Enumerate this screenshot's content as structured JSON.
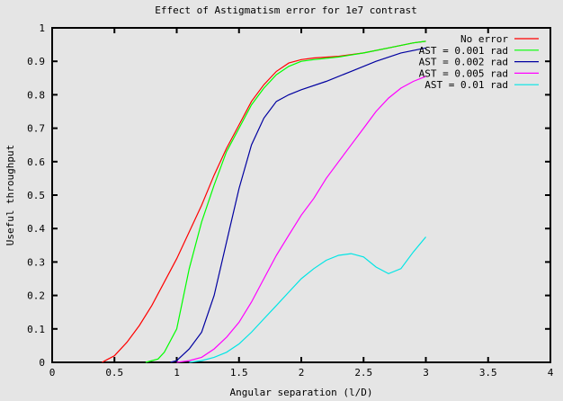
{
  "chart_data": {
    "type": "line",
    "title": "Effect of Astigmatism error for 1e7 contrast",
    "xlabel": "Angular separation (l/D)",
    "ylabel": "Useful throughput",
    "xlim": [
      0,
      4
    ],
    "ylim": [
      0,
      1
    ],
    "xticks": [
      "0",
      "0.5",
      "1",
      "1.5",
      "2",
      "2.5",
      "3",
      "3.5",
      "4"
    ],
    "xtick_values": [
      0,
      0.5,
      1,
      1.5,
      2,
      2.5,
      3,
      3.5,
      4
    ],
    "yticks": [
      "0",
      "0.1",
      "0.2",
      "0.3",
      "0.4",
      "0.5",
      "0.6",
      "0.7",
      "0.8",
      "0.9",
      "1"
    ],
    "ytick_values": [
      0,
      0.1,
      0.2,
      0.3,
      0.4,
      0.5,
      0.6,
      0.7,
      0.8,
      0.9,
      1
    ],
    "grid": false,
    "legend_position": "top-right",
    "series": [
      {
        "name": "No error",
        "color": "#ff0000",
        "x": [
          0.4,
          0.45,
          0.5,
          0.6,
          0.7,
          0.8,
          0.9,
          1.0,
          1.1,
          1.2,
          1.3,
          1.4,
          1.5,
          1.6,
          1.7,
          1.8,
          1.9,
          2.0,
          2.1,
          2.3,
          2.5,
          2.7,
          2.9,
          3.0
        ],
        "y": [
          0,
          0.01,
          0.02,
          0.06,
          0.11,
          0.17,
          0.24,
          0.31,
          0.39,
          0.47,
          0.56,
          0.64,
          0.71,
          0.78,
          0.83,
          0.87,
          0.895,
          0.905,
          0.91,
          0.915,
          0.925,
          0.94,
          0.955,
          0.96
        ]
      },
      {
        "name": "AST = 0.001 rad",
        "color": "#00ff00",
        "x": [
          0.75,
          0.85,
          0.9,
          1.0,
          1.1,
          1.2,
          1.3,
          1.4,
          1.5,
          1.6,
          1.7,
          1.8,
          1.9,
          2.0,
          2.1,
          2.3,
          2.5,
          2.7,
          2.9,
          3.0
        ],
        "y": [
          0,
          0.01,
          0.03,
          0.1,
          0.28,
          0.42,
          0.53,
          0.63,
          0.7,
          0.77,
          0.82,
          0.86,
          0.885,
          0.9,
          0.905,
          0.913,
          0.925,
          0.94,
          0.955,
          0.96
        ]
      },
      {
        "name": "AST = 0.002 rad",
        "color": "#0000a0",
        "x": [
          0.95,
          1.0,
          1.1,
          1.2,
          1.3,
          1.4,
          1.5,
          1.6,
          1.7,
          1.8,
          1.9,
          2.0,
          2.2,
          2.4,
          2.6,
          2.8,
          3.0
        ],
        "y": [
          0,
          0.005,
          0.04,
          0.09,
          0.2,
          0.36,
          0.52,
          0.65,
          0.73,
          0.78,
          0.8,
          0.815,
          0.84,
          0.87,
          0.9,
          0.925,
          0.94
        ]
      },
      {
        "name": "AST = 0.005 rad",
        "color": "#ff00ff",
        "x": [
          1.0,
          1.1,
          1.2,
          1.3,
          1.4,
          1.5,
          1.6,
          1.7,
          1.8,
          1.9,
          2.0,
          2.1,
          2.2,
          2.3,
          2.4,
          2.5,
          2.6,
          2.7,
          2.8,
          2.9,
          3.0
        ],
        "y": [
          0,
          0.005,
          0.015,
          0.04,
          0.075,
          0.12,
          0.18,
          0.25,
          0.32,
          0.38,
          0.44,
          0.49,
          0.55,
          0.6,
          0.65,
          0.7,
          0.75,
          0.79,
          0.82,
          0.84,
          0.855
        ]
      },
      {
        "name": "AST = 0.01 rad",
        "color": "#00e5e5",
        "x": [
          1.1,
          1.2,
          1.3,
          1.4,
          1.5,
          1.6,
          1.7,
          1.8,
          1.9,
          2.0,
          2.1,
          2.2,
          2.3,
          2.4,
          2.5,
          2.6,
          2.7,
          2.8,
          2.9,
          3.0
        ],
        "y": [
          0,
          0.005,
          0.015,
          0.03,
          0.055,
          0.09,
          0.13,
          0.17,
          0.21,
          0.25,
          0.28,
          0.305,
          0.32,
          0.325,
          0.315,
          0.285,
          0.265,
          0.28,
          0.33,
          0.375
        ]
      }
    ]
  }
}
